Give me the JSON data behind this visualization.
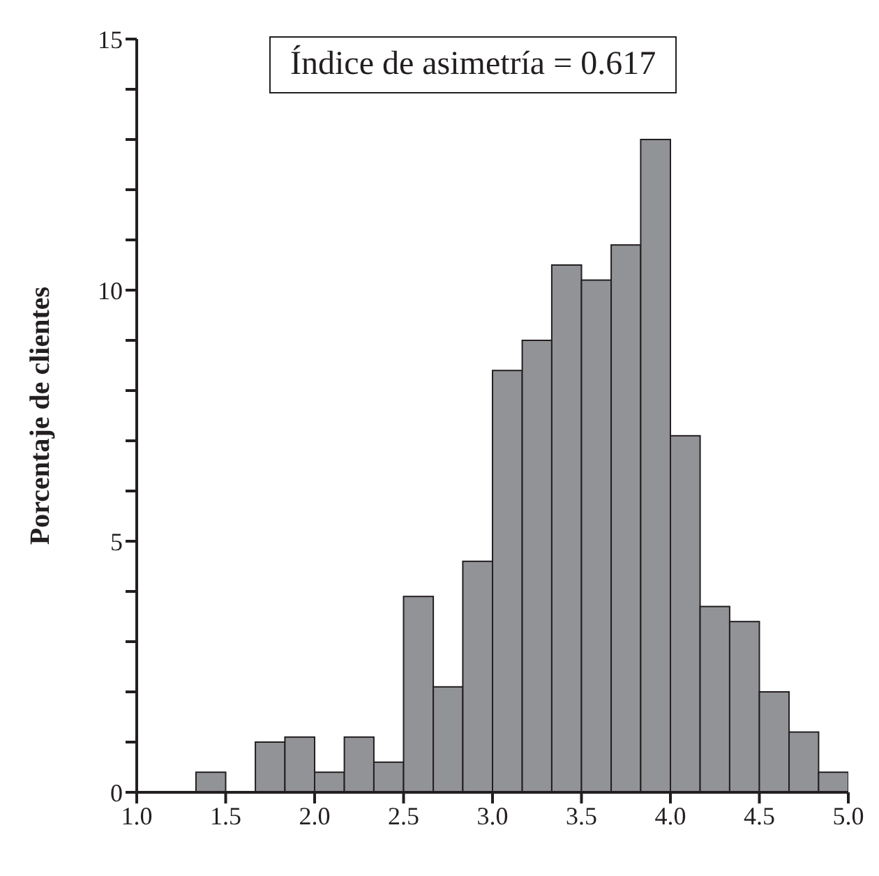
{
  "chart_data": {
    "type": "histogram",
    "ylabel": "Porcentaje de clientes",
    "annotations": [
      "Índice de asimetría = 0.617"
    ],
    "bins": [
      1.333,
      1.5,
      1.667,
      1.833,
      2.0,
      2.167,
      2.333,
      2.5,
      2.667,
      2.833,
      3.0,
      3.167,
      3.333,
      3.5,
      3.667,
      3.833,
      4.0,
      4.167,
      4.333,
      4.5,
      4.667,
      4.833,
      5.0
    ],
    "values": [
      0.4,
      0,
      1.0,
      1.1,
      0.4,
      1.1,
      0.6,
      3.9,
      2.1,
      4.6,
      8.4,
      9.0,
      10.5,
      10.2,
      10.9,
      13.0,
      7.1,
      3.7,
      3.4,
      2.0,
      1.2,
      0.4
    ],
    "color": "#929397",
    "xlim": [
      1,
      5
    ],
    "xticks": [
      {
        "value": 1,
        "label": "1.0"
      },
      {
        "value": 1.5,
        "label": "1.5"
      },
      {
        "value": 2,
        "label": "2.0"
      },
      {
        "value": 2.5,
        "label": "2.5"
      },
      {
        "value": 3,
        "label": "3.0"
      },
      {
        "value": 3.5,
        "label": "3.5"
      },
      {
        "value": 4,
        "label": "4.0"
      },
      {
        "value": 4.5,
        "label": "4.5"
      },
      {
        "value": 5,
        "label": "5.0"
      }
    ],
    "ylim": [
      0,
      15
    ],
    "yticks": [
      0,
      {
        "value": 1,
        "label": null
      },
      {
        "value": 2,
        "label": null
      },
      {
        "value": 3,
        "label": null
      },
      {
        "value": 4,
        "label": null
      },
      5,
      {
        "value": 6,
        "label": null
      },
      {
        "value": 7,
        "label": null
      },
      {
        "value": 8,
        "label": null
      },
      {
        "value": 9,
        "label": null
      },
      10,
      {
        "value": 11,
        "label": null
      },
      {
        "value": 12,
        "label": null
      },
      {
        "value": 13,
        "label": null
      },
      {
        "value": 14,
        "label": null
      },
      15
    ],
    "grid": false,
    "legend": false
  }
}
